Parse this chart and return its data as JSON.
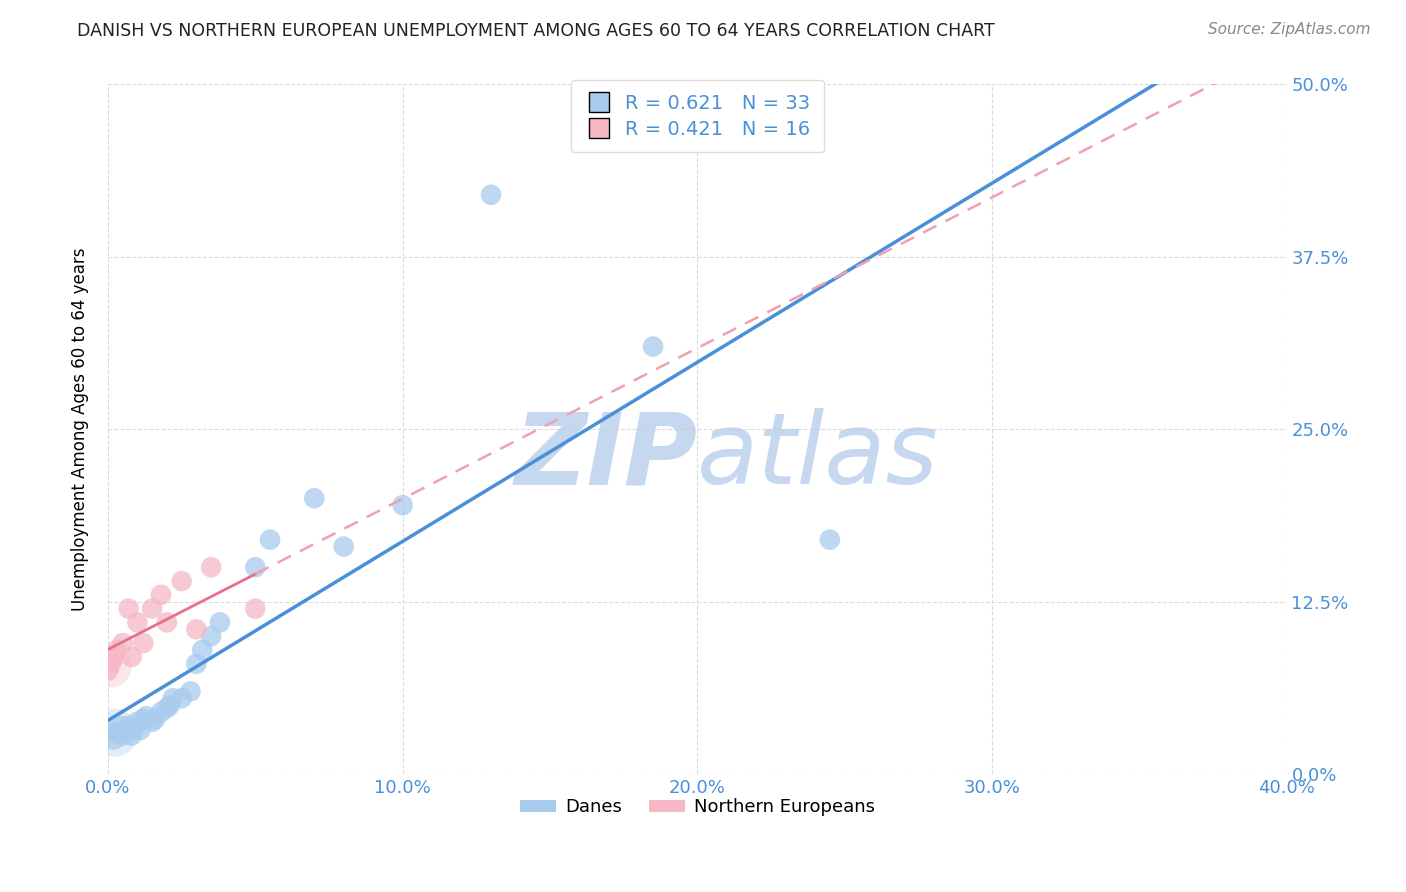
{
  "title": "DANISH VS NORTHERN EUROPEAN UNEMPLOYMENT AMONG AGES 60 TO 64 YEARS CORRELATION CHART",
  "source": "Source: ZipAtlas.com",
  "ylabel": "Unemployment Among Ages 60 to 64 years",
  "xlim": [
    0.0,
    0.4
  ],
  "ylim": [
    0.0,
    0.5
  ],
  "danes_R": 0.621,
  "danes_N": 33,
  "ne_R": 0.421,
  "ne_N": 16,
  "blue_color": "#A8CBEE",
  "pink_color": "#F5B8C4",
  "blue_line_color": "#4A90D9",
  "pink_line_color": "#E8708A",
  "pink_dashed_color": "#F0A0B0",
  "tick_color": "#4A90D9",
  "watermark_zip_color": "#C5D8F0",
  "watermark_atlas_color": "#C5D8F0",
  "background_color": "#FFFFFF",
  "grid_color": "#CCCCCC",
  "danes_x": [
    0.0,
    0.002,
    0.003,
    0.004,
    0.005,
    0.006,
    0.007,
    0.008,
    0.009,
    0.01,
    0.011,
    0.012,
    0.013,
    0.015,
    0.016,
    0.018,
    0.02,
    0.021,
    0.022,
    0.025,
    0.028,
    0.03,
    0.032,
    0.035,
    0.038,
    0.05,
    0.055,
    0.07,
    0.08,
    0.1,
    0.13,
    0.185,
    0.245
  ],
  "danes_y": [
    0.03,
    0.025,
    0.03,
    0.035,
    0.028,
    0.032,
    0.035,
    0.028,
    0.033,
    0.038,
    0.032,
    0.04,
    0.042,
    0.038,
    0.04,
    0.045,
    0.048,
    0.05,
    0.055,
    0.055,
    0.06,
    0.08,
    0.09,
    0.1,
    0.11,
    0.15,
    0.17,
    0.2,
    0.165,
    0.195,
    0.42,
    0.31,
    0.17
  ],
  "ne_x": [
    0.0,
    0.001,
    0.002,
    0.003,
    0.005,
    0.007,
    0.008,
    0.01,
    0.012,
    0.015,
    0.018,
    0.02,
    0.025,
    0.03,
    0.035,
    0.05
  ],
  "ne_y": [
    0.075,
    0.08,
    0.085,
    0.09,
    0.095,
    0.12,
    0.085,
    0.11,
    0.095,
    0.12,
    0.13,
    0.11,
    0.14,
    0.105,
    0.15,
    0.12
  ]
}
